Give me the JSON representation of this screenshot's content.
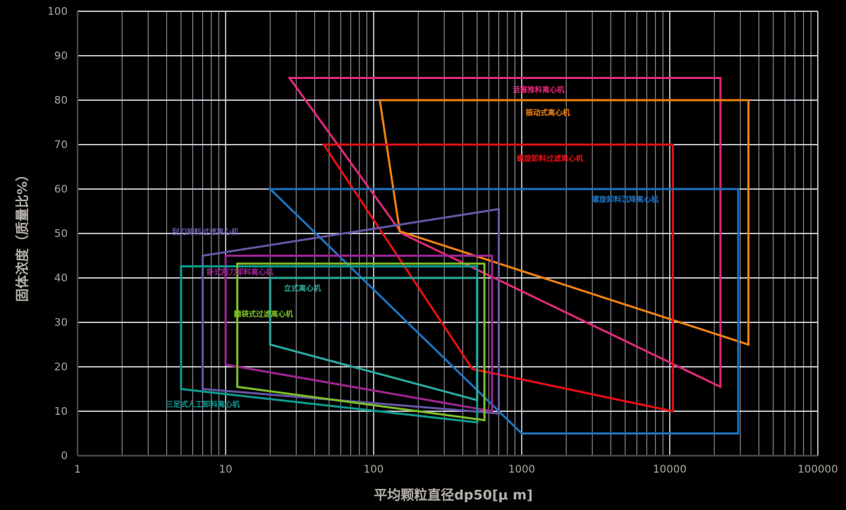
{
  "chart_data": {
    "type": "area",
    "title": "",
    "xlabel": "平均颗粒直径dp50[μ m]",
    "ylabel": "固体浓度（质量比%）",
    "x_scale": "log",
    "x_range": [
      1,
      100000
    ],
    "y_range": [
      0,
      100
    ],
    "x_ticks": [
      "1",
      "10",
      "100",
      "1000",
      "10000",
      "100000"
    ],
    "y_ticks": [
      "0",
      "10",
      "20",
      "30",
      "40",
      "50",
      "60",
      "70",
      "80",
      "90",
      "100"
    ],
    "grid": {
      "on": true,
      "h_line_color": "#d9d9e2",
      "major_v_color": "#c2c2cc",
      "minor_v_color": "#8d8d97",
      "axis_line_color": "#4d4145",
      "tick_label_color": "#aaa69f",
      "axis_title_color": "#b3afa8"
    },
    "legend_position": "labels-inside-plot",
    "series": [
      {
        "name": "活塞推料离心机",
        "color": "#e02878",
        "points": [
          [
            27,
            85
          ],
          [
            22000,
            85
          ],
          [
            22000,
            15.5
          ],
          [
            155,
            50
          ]
        ],
        "label_at": [
          1300,
          82.5
        ]
      },
      {
        "name": "振动式离心机",
        "color": "#ef8212",
        "points": [
          [
            110,
            80
          ],
          [
            34000,
            80
          ],
          [
            34000,
            25
          ],
          [
            150,
            50.5
          ]
        ],
        "label_at": [
          1500,
          77.3
        ]
      },
      {
        "name": "螺旋卸料过滤离心机",
        "color": "#e60f17",
        "points": [
          [
            46,
            70
          ],
          [
            10500,
            70
          ],
          [
            10500,
            10
          ],
          [
            465,
            19.5
          ]
        ],
        "label_at": [
          1550,
          67
        ]
      },
      {
        "name": "螺旋卸料沉降离心机",
        "color": "#1d72bf",
        "points": [
          [
            20,
            60
          ],
          [
            29000,
            60
          ],
          [
            29000,
            5
          ],
          [
            1000,
            5
          ]
        ],
        "label_at": [
          5000,
          57.8
        ]
      },
      {
        "name": "刮刀卸料过滤离心机",
        "color": "#6456a4",
        "points": [
          [
            7,
            45
          ],
          [
            700,
            55.5
          ],
          [
            700,
            9.5
          ],
          [
            7,
            15
          ]
        ],
        "label_at": [
          7.3,
          50.5
        ]
      },
      {
        "name": "卧式刮刀卸料离心机",
        "color": "#9c2590",
        "points": [
          [
            10,
            45
          ],
          [
            630,
            45
          ],
          [
            630,
            10
          ],
          [
            10,
            20.5
          ]
        ],
        "label_at": [
          12.5,
          41.4
        ]
      },
      {
        "name": "三足式人工卸料离心机",
        "color": "#0d9b8e",
        "points": [
          [
            5,
            42.6
          ],
          [
            500,
            42.6
          ],
          [
            500,
            7.5
          ],
          [
            5,
            15
          ]
        ],
        "label_at": [
          7,
          11.7
        ]
      },
      {
        "name": "翻袋式过滤离心机",
        "color": "#7ebd2b",
        "points": [
          [
            12,
            43.2
          ],
          [
            560,
            43.2
          ],
          [
            560,
            8
          ],
          [
            12,
            15.5
          ]
        ],
        "label_at": [
          18,
          32
        ]
      },
      {
        "name": "立式离心机",
        "color": "#2ca99e",
        "points": [
          [
            20,
            40
          ],
          [
            500,
            40
          ],
          [
            500,
            12.5
          ],
          [
            20,
            25
          ]
        ],
        "label_at": [
          33,
          37.8
        ]
      }
    ]
  }
}
